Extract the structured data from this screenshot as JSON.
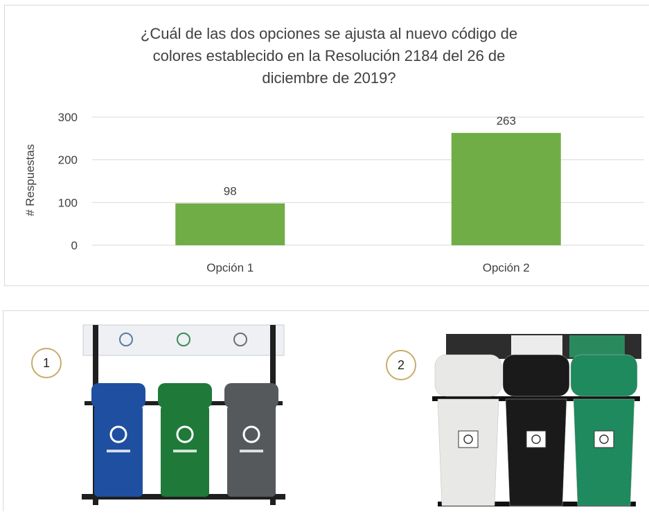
{
  "chart_data": {
    "type": "bar",
    "title": "¿Cuál de las dos opciones se ajusta al nuevo código de colores establecido en la Resolución 2184 del 26 de diciembre de 2019?",
    "title_lines": [
      "¿Cuál de las dos opciones se ajusta al nuevo código de",
      "colores establecido en la Resolución 2184 del 26 de",
      "diciembre de 2019?"
    ],
    "categories": [
      "Opción 1",
      "Opción 2"
    ],
    "values": [
      98,
      263
    ],
    "data_labels": [
      "98",
      "263"
    ],
    "ylabel": "# Respuestas",
    "xlabel": "",
    "ylim": [
      0,
      300
    ],
    "yticks": [
      "0",
      "100",
      "200",
      "300"
    ],
    "bar_color": "#70ad47",
    "grid": true,
    "legend": "none"
  },
  "options": [
    {
      "number": "1",
      "bins": [
        {
          "color": "blue",
          "hex": "#1f4fa0"
        },
        {
          "color": "green",
          "hex": "#1f7a3a"
        },
        {
          "color": "gray",
          "hex": "#55595c"
        }
      ]
    },
    {
      "number": "2",
      "bins": [
        {
          "color": "white",
          "hex": "#e8e8e6"
        },
        {
          "color": "black",
          "hex": "#1a1a1a"
        },
        {
          "color": "green",
          "hex": "#1e8a5e"
        }
      ]
    }
  ]
}
